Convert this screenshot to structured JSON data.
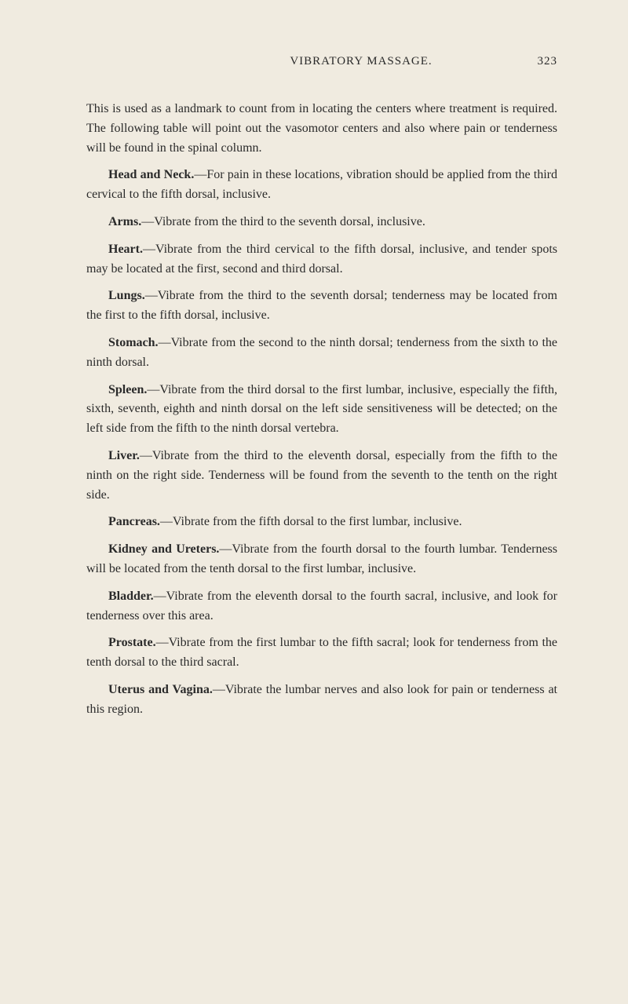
{
  "header": {
    "title": "VIBRATORY MASSAGE.",
    "page_number": "323"
  },
  "intro": "This is used as a landmark to count from in locating the centers where treatment is required. The following table will point out the vasomotor centers and also where pain or tenderness will be found in the spinal column.",
  "entries": [
    {
      "label": "Head and Neck.",
      "text": "—For pain in these locations, vibration should be applied from the third cervical to the fifth dorsal, inclusive."
    },
    {
      "label": "Arms.",
      "text": "—Vibrate from the third to the seventh dorsal, inclusive."
    },
    {
      "label": "Heart.",
      "text": "—Vibrate from the third cervical to the fifth dorsal, inclusive, and tender spots may be located at the first, second and third dorsal."
    },
    {
      "label": "Lungs.",
      "text": "—Vibrate from the third to the seventh dorsal; tenderness may be located from the first to the fifth dorsal, inclusive."
    },
    {
      "label": "Stomach.",
      "text": "—Vibrate from the second to the ninth dorsal; tenderness from the sixth to the ninth dorsal."
    },
    {
      "label": "Spleen.",
      "text": "—Vibrate from the third dorsal to the first lumbar, inclusive, especially the fifth, sixth, seventh, eighth and ninth dorsal on the left side sensitiveness will be detected; on the left side from the fifth to the ninth dorsal vertebra."
    },
    {
      "label": "Liver.",
      "text": "—Vibrate from the third to the eleventh dorsal, especially from the fifth to the ninth on the right side. Tenderness will be found from the seventh to the tenth on the right side."
    },
    {
      "label": "Pancreas.",
      "text": "—Vibrate from the fifth dorsal to the first lumbar, inclusive."
    },
    {
      "label": "Kidney and Ureters.",
      "text": "—Vibrate from the fourth dorsal to the fourth lumbar. Tenderness will be located from the tenth dorsal to the first lumbar, inclusive."
    },
    {
      "label": "Bladder.",
      "text": "—Vibrate from the eleventh dorsal to the fourth sacral, inclusive, and look for tenderness over this area."
    },
    {
      "label": "Prostate.",
      "text": "—Vibrate from the first lumbar to the fifth sacral; look for tenderness from the tenth dorsal to the third sacral."
    },
    {
      "label": "Uterus and Vagina.",
      "text": "—Vibrate the lumbar nerves and also look for pain or tenderness at this region."
    }
  ]
}
